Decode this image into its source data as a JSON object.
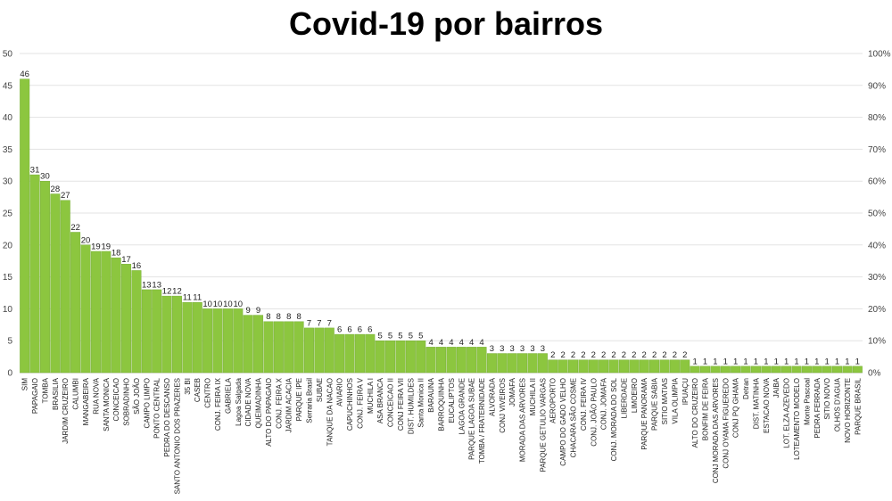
{
  "chart_data": {
    "type": "bar",
    "title": "Covid-19 por bairros",
    "xlabel": "",
    "ylabel": "",
    "ylim": [
      0,
      50
    ],
    "y_ticks": [
      "0",
      "5",
      "10",
      "15",
      "20",
      "25",
      "30",
      "35",
      "40",
      "45",
      "50"
    ],
    "y2_ticks": [
      "0%",
      "10%",
      "20%",
      "30%",
      "40%",
      "50%",
      "60%",
      "70%",
      "80%",
      "90%",
      "100%"
    ],
    "grid": true,
    "bar_color": "#8cc63f",
    "categories": [
      "SIM",
      "PAPAGAIO",
      "TOMBA",
      "BRASILIA",
      "JARDIM CRUZEIRO",
      "CALUMBI",
      "MANGABEIRA",
      "RUA NOVA",
      "SANTA MONICA",
      "CONCEICAO",
      "SOBRADINHO",
      "SÃO JOÃO",
      "CAMPO LIMPO",
      "PONTO CENTRAL",
      "PEDRA DO DESCANSO",
      "SANTO ANTONIO DOS PRAZERES",
      "35 BI",
      "CASEB",
      "CENTRO",
      "CONJ. FEIRA IX",
      "GABRIELA",
      "Lagoa Salgada",
      "CIDADE NOVA",
      "QUEIMADINHA",
      "ALTO DO PAPAGAIO",
      "CONJ. FEIRA X",
      "JARDIM ACACIA",
      "PARQUE IPE",
      "Serraria Brasil",
      "SUBAE",
      "TANQUE DA NACAO",
      "AVIARIO",
      "CAPUCHINHOS",
      "CONJ. FEIRA V",
      "MUCHILA I",
      "ASA BRANCA",
      "CONCEICAO II",
      "CONJ FEIRA VII",
      "DIST. HUMILDES",
      "Santa Monica II",
      "BARAUNA",
      "BARROQUINHA",
      "EUCALIPTOS",
      "LAGOA GRANDE",
      "PARQUE LAGOA SUBAE",
      "TOMBA / FRATERNIDADE",
      "ALVORADA",
      "CONJ VIVEIROS",
      "JOMAFA",
      "MORADA DAS ARVORES",
      "MUCHILA II",
      "PARQUE GETULIO VARGAS",
      "AEROPORTO",
      "CAMPO DO GADO VELHO",
      "CHACARA SÃO COSME",
      "CONJ. FEIRA IV",
      "CONJ. JOÃO PAULO",
      "CONJ. JOMAFA",
      "CONJ. MORADA DO SOL",
      "LIBERDADE",
      "LIMOEIRO",
      "PARQUE PANORAMA",
      "PARQUE SABIA",
      "SITIO MATIAS",
      "VILA OLIMPIA",
      "IPUAÇU",
      "ALTO DO CRUZEIRO",
      "BONFIM DE FEIRA",
      "CONJ MORADA DAS ARVORES",
      "CONJ OYAMA FIGUEREDO",
      "CONJ PQ GHAMA",
      "Detran",
      "DIST. MATINHA",
      "ESTACAO NOVA",
      "JAIBA",
      "LOT. ELZA AZEVEDO",
      "LOTEAMENTO MODELO",
      "Monte Pascoal",
      "PEDRA FERRADA",
      "SITIO NOVO",
      "OLHOS D'AGUA",
      "NOVO HORIZONTE",
      "PARQUE BRASIL"
    ],
    "values": [
      46,
      31,
      30,
      28,
      27,
      22,
      20,
      19,
      19,
      18,
      17,
      16,
      13,
      13,
      12,
      12,
      11,
      11,
      10,
      10,
      10,
      10,
      9,
      9,
      8,
      8,
      8,
      8,
      7,
      7,
      7,
      6,
      6,
      6,
      6,
      5,
      5,
      5,
      5,
      5,
      4,
      4,
      4,
      4,
      4,
      4,
      3,
      3,
      3,
      3,
      3,
      3,
      2,
      2,
      2,
      2,
      2,
      2,
      2,
      2,
      2,
      2,
      2,
      2,
      2,
      2,
      1,
      1,
      1,
      1,
      1,
      1,
      1,
      1,
      1,
      1,
      1,
      1,
      1,
      1,
      1,
      1,
      1
    ]
  }
}
